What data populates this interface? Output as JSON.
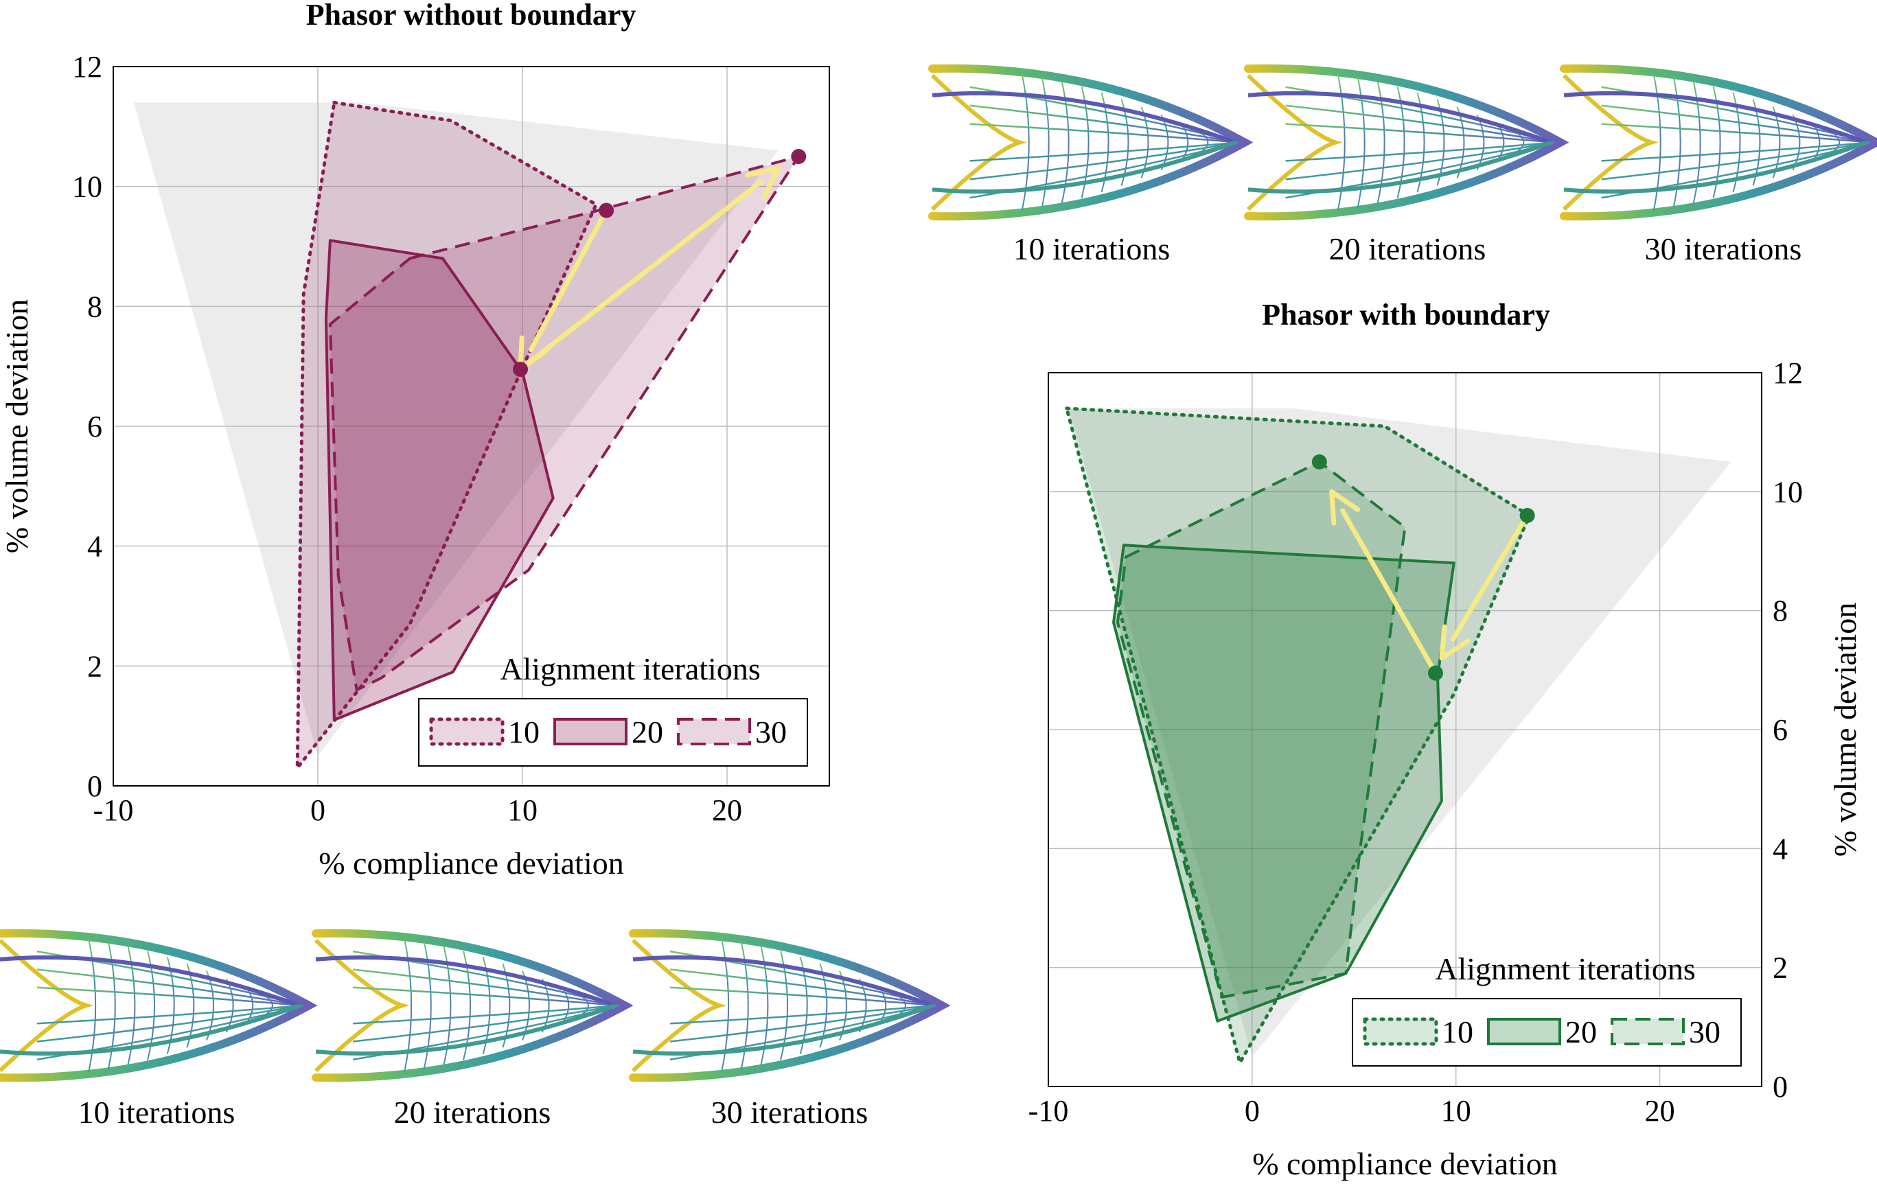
{
  "chart_data": [
    {
      "type": "area",
      "title": "Phasor without boundary",
      "xlabel": "% compliance deviation",
      "ylabel": "% volume deviation",
      "xlim": [
        -10,
        25
      ],
      "ylim": [
        0,
        12
      ],
      "xticks": [
        "-10",
        "0",
        "10",
        "20"
      ],
      "yticks": [
        "0",
        "2",
        "4",
        "6",
        "8",
        "10",
        "12"
      ],
      "grid": true,
      "ylabel_side": "left",
      "color": "#8a1e54",
      "legend": {
        "title": "Alignment iterations",
        "placement": "bottom-right",
        "entries": [
          "10",
          "20",
          "30"
        ]
      },
      "background_region": [
        [
          -9,
          11.4
        ],
        [
          2,
          11.4
        ],
        [
          22.5,
          10.6
        ],
        [
          0,
          0.5
        ]
      ],
      "series": [
        {
          "name": "10",
          "style": "dotted",
          "fill_opacity": 0.18,
          "x": [
            0.8,
            6.5,
            13.6,
            9.9,
            4.5,
            -1.0,
            -0.7
          ],
          "y": [
            11.4,
            11.1,
            9.7,
            6.9,
            2.7,
            0.3,
            8.2
          ]
        },
        {
          "name": "20",
          "style": "solid",
          "fill_opacity": 0.28,
          "x": [
            0.6,
            6.1,
            10.0,
            11.5,
            6.6,
            0.8,
            0.4
          ],
          "y": [
            9.1,
            8.8,
            6.9,
            4.8,
            1.9,
            1.1,
            7.8
          ]
        },
        {
          "name": "30",
          "style": "dashed",
          "fill_opacity": 0.18,
          "x": [
            4.5,
            13.7,
            23.5,
            10.3,
            3.1,
            1.9,
            1.0,
            0.6
          ],
          "y": [
            8.8,
            9.6,
            10.5,
            3.6,
            1.8,
            1.6,
            3.5,
            7.7
          ]
        }
      ],
      "points": [
        {
          "series": "10",
          "x": 14.1,
          "y": 9.6
        },
        {
          "series": "20",
          "x": 9.9,
          "y": 6.95
        },
        {
          "series": "30",
          "x": 23.5,
          "y": 10.5
        }
      ],
      "arrows": [
        {
          "from": [
            14.1,
            9.6
          ],
          "to": [
            9.9,
            6.95
          ]
        },
        {
          "from": [
            9.9,
            6.95
          ],
          "to": [
            22.5,
            10.3
          ]
        }
      ],
      "thumbnails": [
        "10 iterations",
        "20 iterations",
        "30 iterations"
      ]
    },
    {
      "type": "area",
      "title": "Phasor with boundary",
      "xlabel": "% compliance deviation",
      "ylabel": "% volume deviation",
      "xlim": [
        -10,
        25
      ],
      "ylim": [
        0,
        12
      ],
      "xticks": [
        "-10",
        "0",
        "10",
        "20"
      ],
      "yticks": [
        "0",
        "2",
        "4",
        "6",
        "8",
        "10",
        "12"
      ],
      "grid": true,
      "ylabel_side": "right",
      "color": "#1f7a3a",
      "legend": {
        "title": "Alignment iterations",
        "placement": "bottom-right",
        "entries": [
          "10",
          "20",
          "30"
        ]
      },
      "background_region": [
        [
          -9,
          11.4
        ],
        [
          2,
          11.4
        ],
        [
          23.5,
          10.5
        ],
        [
          0,
          0.5
        ]
      ],
      "series": [
        {
          "name": "10",
          "style": "dotted",
          "fill_opacity": 0.18,
          "x": [
            -9.1,
            6.5,
            13.6,
            9.9,
            -0.6,
            -6.5
          ],
          "y": [
            11.4,
            11.1,
            9.6,
            6.6,
            0.4,
            8.0
          ]
        },
        {
          "name": "20",
          "style": "solid",
          "fill_opacity": 0.28,
          "x": [
            -6.3,
            9.9,
            9.1,
            9.3,
            4.6,
            -1.7,
            -6.8
          ],
          "y": [
            9.1,
            8.8,
            6.9,
            4.8,
            1.9,
            1.1,
            7.8
          ]
        },
        {
          "name": "30",
          "style": "dashed",
          "fill_opacity": 0.18,
          "x": [
            -6.2,
            3.3,
            7.5,
            5.3,
            4.6,
            -1.5,
            -6.6
          ],
          "y": [
            8.9,
            10.5,
            9.4,
            4.0,
            1.9,
            1.5,
            7.8
          ]
        }
      ],
      "points": [
        {
          "series": "10",
          "x": 13.5,
          "y": 9.6
        },
        {
          "series": "20",
          "x": 9.0,
          "y": 6.95
        },
        {
          "series": "30",
          "x": 3.3,
          "y": 10.5
        }
      ],
      "arrows": [
        {
          "from": [
            13.5,
            9.6
          ],
          "to": [
            9.3,
            7.2
          ]
        },
        {
          "from": [
            9.0,
            6.95
          ],
          "to": [
            3.9,
            10.0
          ]
        }
      ],
      "thumbnails": [
        "10 iterations",
        "20 iterations",
        "30 iterations"
      ]
    }
  ]
}
